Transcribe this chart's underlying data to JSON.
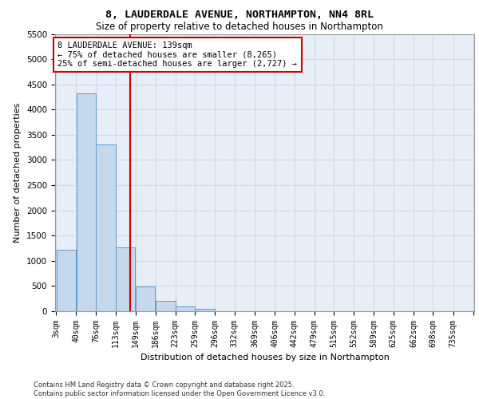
{
  "title_line1": "8, LAUDERDALE AVENUE, NORTHAMPTON, NN4 8RL",
  "title_line2": "Size of property relative to detached houses in Northampton",
  "xlabel": "Distribution of detached houses by size in Northampton",
  "ylabel": "Number of detached properties",
  "footer_line1": "Contains HM Land Registry data © Crown copyright and database right 2025.",
  "footer_line2": "Contains public sector information licensed under the Open Government Licence v3.0.",
  "annotation_line1": "8 LAUDERDALE AVENUE: 139sqm",
  "annotation_line2": "← 75% of detached houses are smaller (8,265)",
  "annotation_line3": "25% of semi-detached houses are larger (2,727) →",
  "property_size": 139,
  "bar_color": "#c5d8ec",
  "bar_edge_color": "#5b9bd5",
  "vline_color": "#cc0000",
  "grid_color": "#d0d8e8",
  "background_color": "#e8eef8",
  "categories": [
    "3sqm",
    "40sqm",
    "76sqm",
    "113sqm",
    "149sqm",
    "186sqm",
    "223sqm",
    "259sqm",
    "296sqm",
    "332sqm",
    "369sqm",
    "406sqm",
    "442sqm",
    "479sqm",
    "515sqm",
    "552sqm",
    "589sqm",
    "625sqm",
    "662sqm",
    "698sqm",
    "735sqm"
  ],
  "bin_edges": [
    3,
    40,
    76,
    113,
    149,
    186,
    223,
    259,
    296,
    332,
    369,
    406,
    442,
    479,
    515,
    552,
    589,
    625,
    662,
    698,
    735
  ],
  "values": [
    1220,
    4320,
    3310,
    1270,
    490,
    200,
    95,
    50,
    0,
    0,
    0,
    0,
    0,
    0,
    0,
    0,
    0,
    0,
    0,
    0
  ],
  "ylim": [
    0,
    5500
  ],
  "yticks": [
    0,
    500,
    1000,
    1500,
    2000,
    2500,
    3000,
    3500,
    4000,
    4500,
    5000,
    5500
  ]
}
